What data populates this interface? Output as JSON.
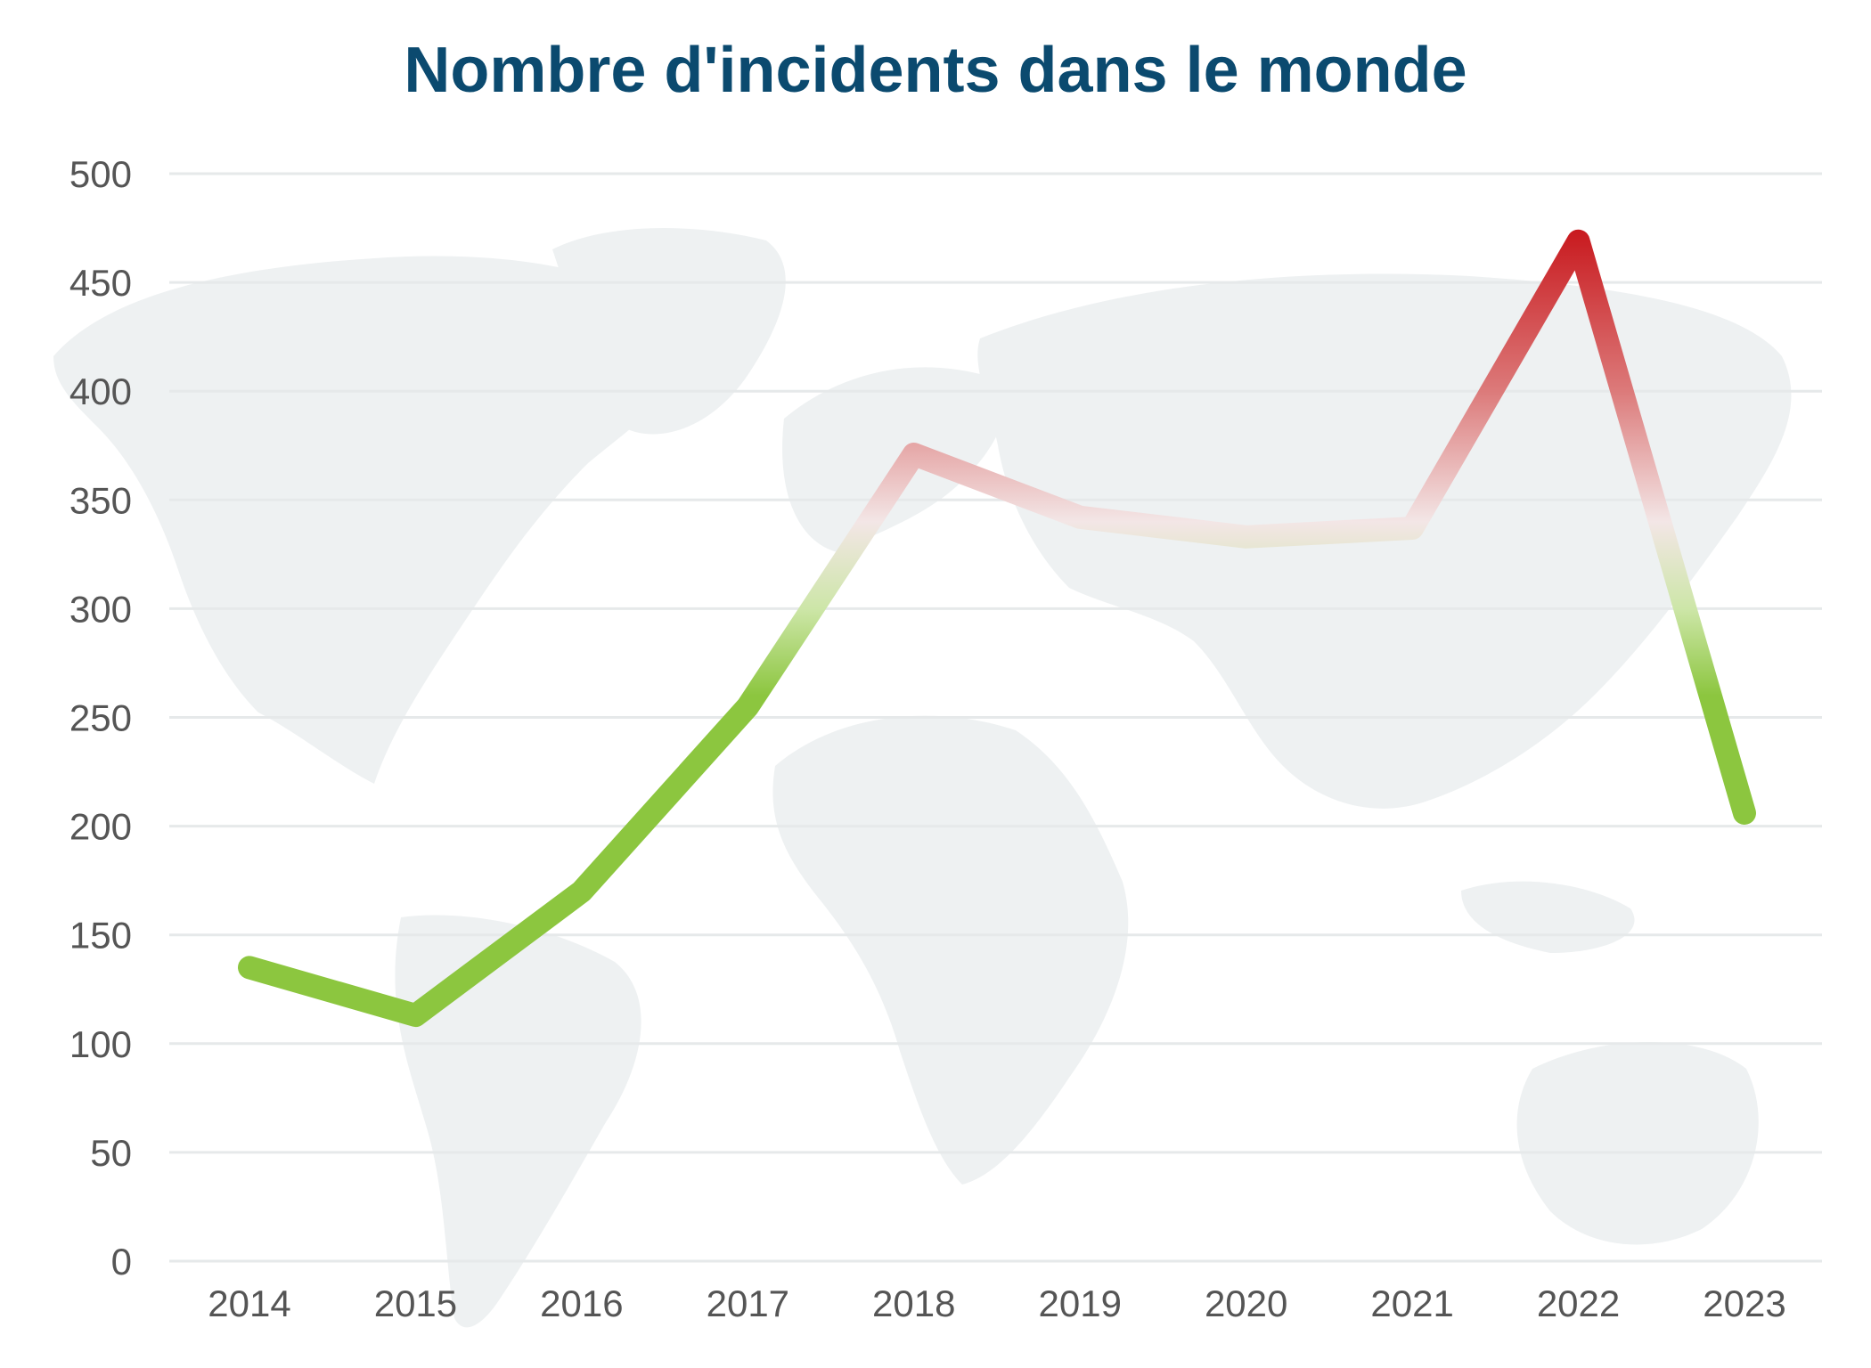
{
  "chart_data": {
    "type": "line",
    "title": "Nombre d'incidents dans le monde",
    "xlabel": "",
    "ylabel": "",
    "categories": [
      "2014",
      "2015",
      "2016",
      "2017",
      "2018",
      "2019",
      "2020",
      "2021",
      "2022",
      "2023"
    ],
    "series": [
      {
        "values": [
          135,
          113,
          170,
          255,
          371,
          342,
          333,
          337,
          469,
          206
        ]
      }
    ],
    "ylim": [
      0,
      500
    ],
    "yticks": [
      0,
      50,
      100,
      150,
      200,
      250,
      300,
      350,
      400,
      450,
      500
    ],
    "grid": true,
    "legend": "none",
    "background": "world map silhouette",
    "colors": {
      "low": "#8cc63f",
      "mid": "#f4e4e4",
      "high": "#c8181d",
      "title": "#0b4a6f",
      "grid": "#e6e9ea",
      "map": "#eef1f2"
    }
  }
}
